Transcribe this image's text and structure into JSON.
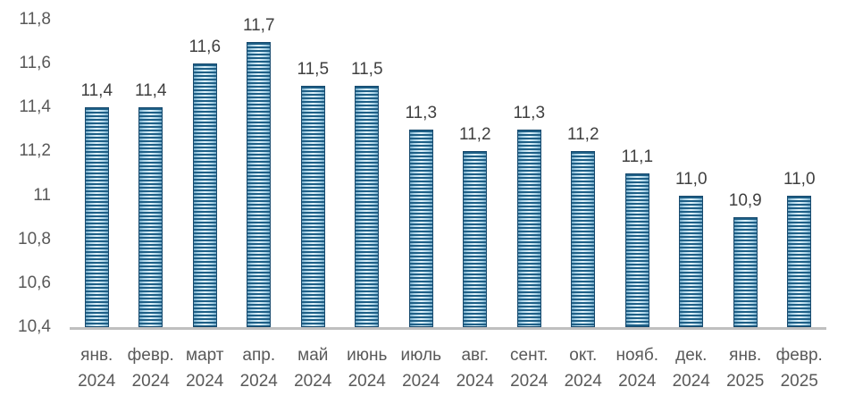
{
  "chart_data": {
    "type": "bar",
    "title": "",
    "categories": [
      {
        "month": "янв.",
        "year": "2024"
      },
      {
        "month": "февр.",
        "year": "2024"
      },
      {
        "month": "март",
        "year": "2024"
      },
      {
        "month": "апр.",
        "year": "2024"
      },
      {
        "month": "май",
        "year": "2024"
      },
      {
        "month": "июнь",
        "year": "2024"
      },
      {
        "month": "июль",
        "year": "2024"
      },
      {
        "month": "авг.",
        "year": "2024"
      },
      {
        "month": "сент.",
        "year": "2024"
      },
      {
        "month": "окт.",
        "year": "2024"
      },
      {
        "month": "нояб.",
        "year": "2024"
      },
      {
        "month": "дек.",
        "year": "2024"
      },
      {
        "month": "янв.",
        "year": "2025"
      },
      {
        "month": "февр.",
        "year": "2025"
      }
    ],
    "values": [
      11.4,
      11.4,
      11.6,
      11.7,
      11.5,
      11.5,
      11.3,
      11.2,
      11.3,
      11.2,
      11.1,
      11.0,
      10.9,
      11.0
    ],
    "value_labels": [
      "11,4",
      "11,4",
      "11,6",
      "11,7",
      "11,5",
      "11,5",
      "11,3",
      "11,2",
      "11,3",
      "11,2",
      "11,1",
      "11,0",
      "10,9",
      "11,0"
    ],
    "y_ticks": [
      {
        "value": 11.8,
        "label": "11,8"
      },
      {
        "value": 11.6,
        "label": "11,6"
      },
      {
        "value": 11.4,
        "label": "11,4"
      },
      {
        "value": 11.2,
        "label": "11,2"
      },
      {
        "value": 11.0,
        "label": "11"
      },
      {
        "value": 10.8,
        "label": "10,8"
      },
      {
        "value": 10.6,
        "label": "10,6"
      },
      {
        "value": 10.4,
        "label": "10,4"
      }
    ],
    "ylim": [
      10.4,
      11.8
    ],
    "xlabel": "",
    "ylabel": "",
    "grid": false,
    "legend": "none",
    "bar_pattern": "horizontal-stripes"
  },
  "colors": {
    "bar_stripe_dark": "#1e5f86",
    "bar_fill_edge": "#78aecb",
    "bar_fill_center": "#e2f3fb",
    "bar_border": "#174a6e",
    "axis_line": "#bfbfbf",
    "tick_text": "#595959",
    "value_text": "#404040"
  }
}
